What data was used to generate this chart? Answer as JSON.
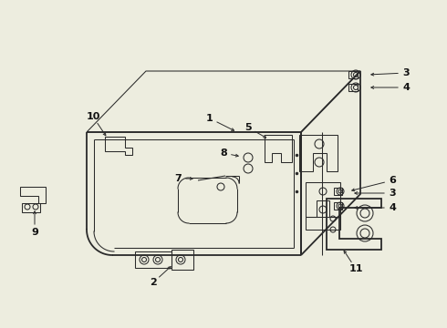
{
  "background_color": "#ededdf",
  "line_color": "#2a2a2a",
  "label_color": "#111111",
  "lw_main": 1.3,
  "lw_thin": 0.75,
  "lw_label": 0.6,
  "fig_w": 4.9,
  "fig_h": 3.6,
  "dpi": 100
}
